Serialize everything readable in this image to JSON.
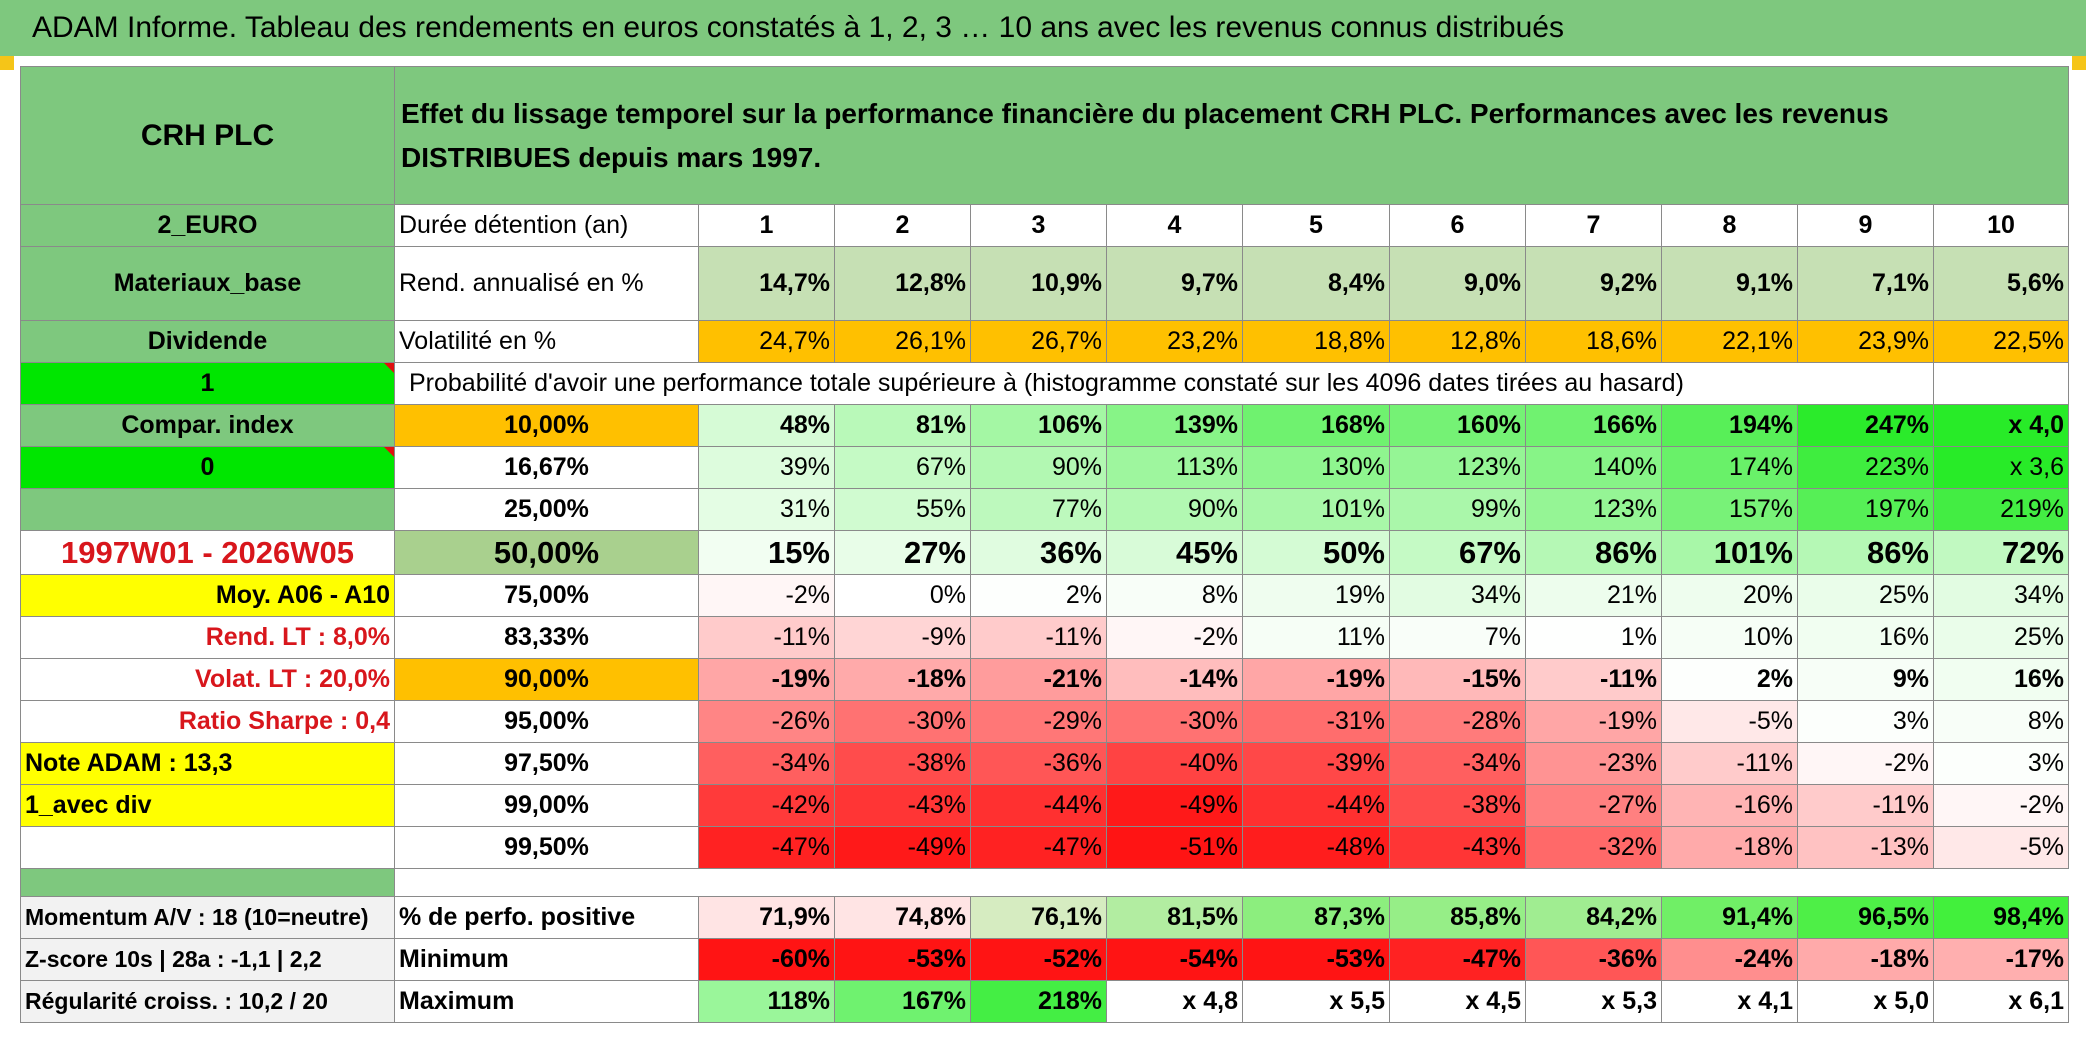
{
  "title": "ADAM Informe. Tableau des rendements en euros constatés à 1, 2, 3 … 10 ans avec les revenus connus distribués",
  "header": {
    "name": "CRH PLC",
    "description": "Effet du lissage temporel sur la performance financière du placement CRH PLC. Performances avec les revenus DISTRIBUES depuis mars 1997."
  },
  "left": {
    "currency": "2_EURO",
    "sector": "Materiaux_base",
    "dividend": "Dividende",
    "flag1": "1",
    "compar": "Compar. index",
    "flag0": "0",
    "blank": "",
    "period": "1997W01 - 2026W05",
    "moy": "Moy. A06 - A10",
    "rend_lt": "Rend. LT :   8,0%",
    "volat_lt": "Volat. LT :   20,0%",
    "sharpe": "Ratio Sharpe :   0,4",
    "note": "Note ADAM : 13,3",
    "avec_div": "1_avec div",
    "momentum": "Momentum A/V : 18 (10=neutre)",
    "zscore": "Z-score 10s | 28a : -1,1 | 2,2",
    "regularite": "Régularité croiss. : 10,2 / 20"
  },
  "row_labels": {
    "duree": "Durée détention (an)",
    "rend": "Rend. annualisé en %",
    "volat": "Volatilité en %",
    "proba": "Probabilité d'avoir une performance totale supérieure à (histogramme constaté sur les 4096 dates tirées au hasard)",
    "positive": "% de perfo. positive",
    "minimum": "Minimum",
    "maximum": "Maximum"
  },
  "years": [
    "1",
    "2",
    "3",
    "4",
    "5",
    "6",
    "7",
    "8",
    "9",
    "10"
  ],
  "rend": [
    "14,7%",
    "12,8%",
    "10,9%",
    "9,7%",
    "8,4%",
    "9,0%",
    "9,2%",
    "9,1%",
    "7,1%",
    "5,6%"
  ],
  "volat": [
    "24,7%",
    "26,1%",
    "26,7%",
    "23,2%",
    "18,8%",
    "12,8%",
    "18,6%",
    "22,1%",
    "23,9%",
    "22,5%"
  ],
  "probability_rows": [
    {
      "p": "10,00%",
      "values": [
        "48%",
        "81%",
        "106%",
        "139%",
        "168%",
        "160%",
        "166%",
        "194%",
        "247%",
        "x 4,0"
      ]
    },
    {
      "p": "16,67%",
      "values": [
        "39%",
        "67%",
        "90%",
        "113%",
        "130%",
        "123%",
        "140%",
        "174%",
        "223%",
        "x 3,6"
      ]
    },
    {
      "p": "25,00%",
      "values": [
        "31%",
        "55%",
        "77%",
        "90%",
        "101%",
        "99%",
        "123%",
        "157%",
        "197%",
        "219%"
      ]
    },
    {
      "p": "50,00%",
      "values": [
        "15%",
        "27%",
        "36%",
        "45%",
        "50%",
        "67%",
        "86%",
        "101%",
        "86%",
        "72%"
      ]
    },
    {
      "p": "75,00%",
      "values": [
        "-2%",
        "0%",
        "2%",
        "8%",
        "19%",
        "34%",
        "21%",
        "20%",
        "25%",
        "34%"
      ]
    },
    {
      "p": "83,33%",
      "values": [
        "-11%",
        "-9%",
        "-11%",
        "-2%",
        "11%",
        "7%",
        "1%",
        "10%",
        "16%",
        "25%"
      ]
    },
    {
      "p": "90,00%",
      "values": [
        "-19%",
        "-18%",
        "-21%",
        "-14%",
        "-19%",
        "-15%",
        "-11%",
        "2%",
        "9%",
        "16%"
      ]
    },
    {
      "p": "95,00%",
      "values": [
        "-26%",
        "-30%",
        "-29%",
        "-30%",
        "-31%",
        "-28%",
        "-19%",
        "-5%",
        "3%",
        "8%"
      ]
    },
    {
      "p": "97,50%",
      "values": [
        "-34%",
        "-38%",
        "-36%",
        "-40%",
        "-39%",
        "-34%",
        "-23%",
        "-11%",
        "-2%",
        "3%"
      ]
    },
    {
      "p": "99,00%",
      "values": [
        "-42%",
        "-43%",
        "-44%",
        "-49%",
        "-44%",
        "-38%",
        "-27%",
        "-16%",
        "-11%",
        "-2%"
      ]
    },
    {
      "p": "99,50%",
      "values": [
        "-47%",
        "-49%",
        "-47%",
        "-51%",
        "-48%",
        "-43%",
        "-32%",
        "-18%",
        "-13%",
        "-5%"
      ]
    }
  ],
  "positive": [
    "71,9%",
    "74,8%",
    "76,1%",
    "81,5%",
    "87,3%",
    "85,8%",
    "84,2%",
    "91,4%",
    "96,5%",
    "98,4%"
  ],
  "minimum": [
    "-60%",
    "-53%",
    "-52%",
    "-54%",
    "-53%",
    "-47%",
    "-36%",
    "-24%",
    "-18%",
    "-17%"
  ],
  "maximum": [
    "118%",
    "167%",
    "218%",
    "x 4,8",
    "x 5,5",
    "x 4,5",
    "x 5,3",
    "x 4,1",
    "x 5,0",
    "x 6,1"
  ],
  "colors": {
    "header_green": "#7ec87e",
    "bright_green": "#00e600",
    "orange": "#ffc000",
    "yellow": "#ffff00",
    "red_text": "#d8161c"
  }
}
